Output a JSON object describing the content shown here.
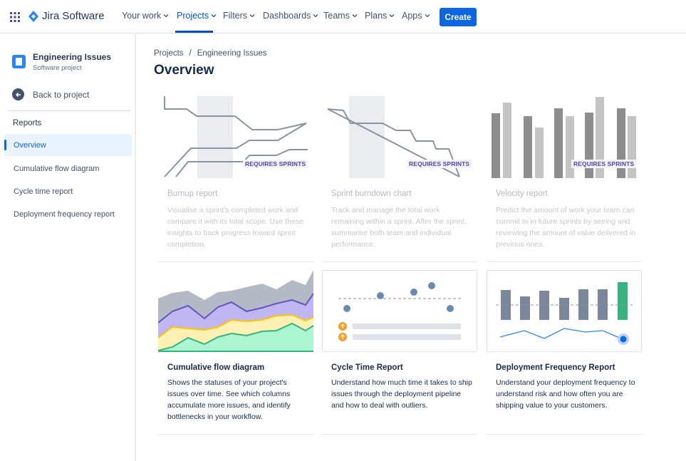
{
  "topnav": {
    "logo_text": "Jira Software",
    "items": [
      {
        "label": "Your work"
      },
      {
        "label": "Projects"
      },
      {
        "label": "Filters"
      },
      {
        "label": "Dashboards"
      },
      {
        "label": "Teams"
      },
      {
        "label": "Plans"
      },
      {
        "label": "Apps"
      }
    ],
    "create_label": "Create"
  },
  "sidebar": {
    "project_name": "Engineering Issues",
    "project_type": "Software project",
    "back_label": "Back to project",
    "section_label": "Reports",
    "items": [
      {
        "label": "Overview"
      },
      {
        "label": "Cumulative flow diagram"
      },
      {
        "label": "Cycle time report"
      },
      {
        "label": "Deployment frequency report"
      }
    ]
  },
  "main": {
    "breadcrumb": [
      "Projects",
      "Engineering Issues"
    ],
    "title": "Overview",
    "cards": [
      {
        "title": "Burnup report",
        "badge": "REQUIRES SPRINTS",
        "desc": "Visualise a sprint's completed work and compare it with its total scope. Use these insights to track progress toward sprint completion."
      },
      {
        "title": "Sprint burndown chart",
        "badge": "REQUIRES SPRINTS",
        "desc": "Track and manage the total work remaining within a sprint. After the sprint, summarise both team and individual performance."
      },
      {
        "title": "Velocity report",
        "badge": "REQUIRES SPRINTS",
        "desc": "Predict the amount of work your team can commit to in future sprints by seeing and reviewing the amount of value delivered in previous ones."
      },
      {
        "title": "Cumulative flow diagram",
        "desc": "Shows the statuses of your project's issues over time. See which columns accumulate more issues, and identify bottlenecks in your workflow."
      },
      {
        "title": "Cycle Time Report",
        "desc": "Understand how much time it takes to ship issues through the deployment pipeline and how to deal with outliers."
      },
      {
        "title": "Deployment Frequency Report",
        "desc": "Understand your deployment frequency to understand risk and how often you are shipping value to your customers."
      }
    ]
  },
  "colors": {
    "brand_blue": "#0c66e4",
    "badge_purple": "#5243aa",
    "cfd_green": "#57d9a3",
    "cfd_yellow": "#ffe380",
    "cfd_purple": "#998dd9",
    "cfd_gray": "#b3bac5",
    "cycle_orange": "#ff991f",
    "deploy_green": "#36b37e"
  }
}
